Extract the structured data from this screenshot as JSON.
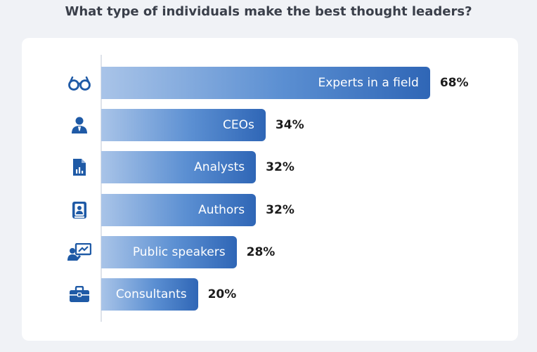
{
  "title": "What type of individuals make the best thought leaders?",
  "colors": {
    "bar_start": "#a9c4e8",
    "bar_end": "#2f66b6",
    "icon": "#1f5aa6"
  },
  "chart_data": {
    "type": "bar",
    "orientation": "horizontal",
    "title": "What type of individuals make the best thought leaders?",
    "categories": [
      "Experts in a field",
      "CEOs",
      "Analysts",
      "Authors",
      "Public speakers",
      "Consultants"
    ],
    "values": [
      68,
      34,
      32,
      32,
      28,
      20
    ],
    "value_labels": [
      "68%",
      "34%",
      "32%",
      "32%",
      "28%",
      "20%"
    ],
    "icons": [
      "glasses-icon",
      "ceo-icon",
      "report-icon",
      "author-icon",
      "presenter-icon",
      "briefcase-icon"
    ],
    "xlim": [
      0,
      100
    ],
    "grid": false,
    "legend": "none"
  }
}
